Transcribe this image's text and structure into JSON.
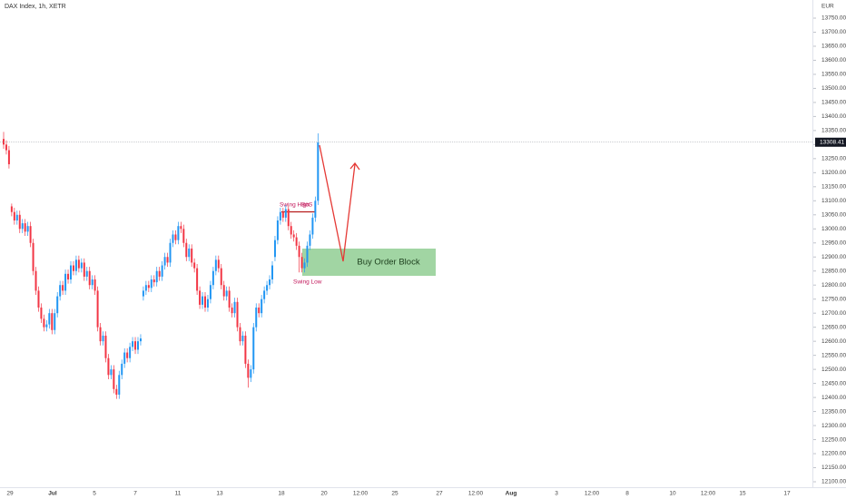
{
  "chart_data": {
    "type": "candlestick",
    "title": "DAX Index, 1h, XETR",
    "currency": "EUR",
    "up_color": "#2196f3",
    "down_color": "#f23645",
    "grid": false,
    "annotations": {
      "swing_high": "Swing High",
      "bos": "BoS",
      "swing_low": "Swing Low",
      "order_block": "Buy Order Block"
    },
    "x_labels": [
      "29",
      "Jul",
      "5",
      "7",
      "11",
      "13",
      "18",
      "20",
      "12:00",
      "25",
      "27",
      "12:00",
      "Aug",
      "3",
      "12:00",
      "8",
      "10",
      "12:00",
      "15",
      "17"
    ],
    "ylim": [
      12080,
      13790
    ],
    "yticks": [
      {
        "value": 12100,
        "label": "12100.00"
      },
      {
        "value": 12150,
        "label": "12150.00"
      },
      {
        "value": 12200,
        "label": "12200.00"
      },
      {
        "value": 12250,
        "label": "12250.00"
      },
      {
        "value": 12300,
        "label": "12300.00"
      },
      {
        "value": 12350,
        "label": "12350.00"
      },
      {
        "value": 12400,
        "label": "12400.00"
      },
      {
        "value": 12450,
        "label": "12450.00"
      },
      {
        "value": 12500,
        "label": "12500.00"
      },
      {
        "value": 12550,
        "label": "12550.00"
      },
      {
        "value": 12600,
        "label": "12600.00"
      },
      {
        "value": 12650,
        "label": "12650.00"
      },
      {
        "value": 12700,
        "label": "12700.00"
      },
      {
        "value": 12750,
        "label": "12750.00"
      },
      {
        "value": 12800,
        "label": "12800.00"
      },
      {
        "value": 12850,
        "label": "12850.00"
      },
      {
        "value": 12900,
        "label": "12900.00"
      },
      {
        "value": 12950,
        "label": "12950.00"
      },
      {
        "value": 13000,
        "label": "13000.00"
      },
      {
        "value": 13050,
        "label": "13050.00"
      },
      {
        "value": 13100,
        "label": "13100.00"
      },
      {
        "value": 13150,
        "label": "13150.00"
      },
      {
        "value": 13200,
        "label": "13200.00"
      },
      {
        "value": 13250,
        "label": "13250.00"
      },
      {
        "value": 13300,
        "label": "13300.00"
      },
      {
        "value": 13350,
        "label": "13350.00"
      },
      {
        "value": 13400,
        "label": "13400.00"
      },
      {
        "value": 13450,
        "label": "13450.00"
      },
      {
        "value": 13500,
        "label": "13500.00"
      },
      {
        "value": 13550,
        "label": "13550.00"
      },
      {
        "value": 13600,
        "label": "13600.00"
      },
      {
        "value": 13650,
        "label": "13650.00"
      },
      {
        "value": 13700,
        "label": "13700.00"
      },
      {
        "value": 13750,
        "label": "13750.00"
      }
    ],
    "candles": [
      [
        13320,
        13345,
        13285,
        13300
      ],
      [
        13300,
        13315,
        13265,
        13280
      ],
      [
        13280,
        13295,
        13215,
        13230
      ],
      [
        13080,
        13090,
        13045,
        13060
      ],
      [
        13060,
        13075,
        13015,
        13030
      ],
      [
        13030,
        13065,
        13015,
        13050
      ],
      [
        13050,
        13065,
        12985,
        13000
      ],
      [
        13000,
        13035,
        12985,
        13020
      ],
      [
        13020,
        13035,
        12975,
        12990
      ],
      [
        12990,
        13025,
        12975,
        13010
      ],
      [
        13010,
        13025,
        12935,
        12950
      ],
      [
        12950,
        12965,
        12835,
        12850
      ],
      [
        12850,
        12865,
        12765,
        12780
      ],
      [
        12780,
        12795,
        12705,
        12720
      ],
      [
        12720,
        12735,
        12665,
        12680
      ],
      [
        12680,
        12695,
        12635,
        12650
      ],
      [
        12650,
        12675,
        12635,
        12660
      ],
      [
        12660,
        12715,
        12645,
        12700
      ],
      [
        12700,
        12715,
        12625,
        12640
      ],
      [
        12640,
        12715,
        12625,
        12700
      ],
      [
        12700,
        12775,
        12685,
        12760
      ],
      [
        12760,
        12815,
        12745,
        12800
      ],
      [
        12800,
        12815,
        12765,
        12780
      ],
      [
        12780,
        12855,
        12765,
        12840
      ],
      [
        12840,
        12855,
        12805,
        12820
      ],
      [
        12820,
        12885,
        12805,
        12870
      ],
      [
        12870,
        12885,
        12835,
        12850
      ],
      [
        12850,
        12905,
        12835,
        12890
      ],
      [
        12890,
        12905,
        12845,
        12860
      ],
      [
        12860,
        12895,
        12845,
        12880
      ],
      [
        12880,
        12895,
        12815,
        12830
      ],
      [
        12830,
        12865,
        12815,
        12850
      ],
      [
        12850,
        12865,
        12785,
        12800
      ],
      [
        12800,
        12835,
        12785,
        12820
      ],
      [
        12820,
        12835,
        12765,
        12780
      ],
      [
        12780,
        12795,
        12635,
        12650
      ],
      [
        12650,
        12665,
        12585,
        12600
      ],
      [
        12600,
        12635,
        12585,
        12620
      ],
      [
        12620,
        12635,
        12525,
        12540
      ],
      [
        12540,
        12555,
        12465,
        12480
      ],
      [
        12480,
        12515,
        12465,
        12500
      ],
      [
        12500,
        12515,
        12415,
        12430
      ],
      [
        12430,
        12445,
        12395,
        12410
      ],
      [
        12410,
        12495,
        12395,
        12480
      ],
      [
        12480,
        12535,
        12465,
        12520
      ],
      [
        12520,
        12575,
        12505,
        12560
      ],
      [
        12560,
        12575,
        12525,
        12540
      ],
      [
        12540,
        12595,
        12525,
        12580
      ],
      [
        12580,
        12615,
        12565,
        12600
      ],
      [
        12600,
        12615,
        12555,
        12570
      ],
      [
        12570,
        12615,
        12555,
        12600
      ],
      [
        12600,
        12625,
        12585,
        12610
      ],
      [
        12760,
        12795,
        12745,
        12780
      ],
      [
        12780,
        12815,
        12765,
        12800
      ],
      [
        12800,
        12815,
        12775,
        12790
      ],
      [
        12790,
        12835,
        12775,
        12820
      ],
      [
        12820,
        12835,
        12795,
        12810
      ],
      [
        12810,
        12865,
        12795,
        12850
      ],
      [
        12850,
        12865,
        12815,
        12830
      ],
      [
        12830,
        12885,
        12815,
        12870
      ],
      [
        12870,
        12915,
        12855,
        12900
      ],
      [
        12900,
        12915,
        12865,
        12880
      ],
      [
        12880,
        12965,
        12865,
        12950
      ],
      [
        12950,
        12995,
        12935,
        12980
      ],
      [
        12980,
        12995,
        12945,
        12960
      ],
      [
        12960,
        13025,
        12945,
        13010
      ],
      [
        13010,
        13025,
        12985,
        13000
      ],
      [
        13000,
        13015,
        12935,
        12950
      ],
      [
        12950,
        12965,
        12885,
        12900
      ],
      [
        12900,
        12945,
        12885,
        12930
      ],
      [
        12930,
        12945,
        12865,
        12880
      ],
      [
        12880,
        12895,
        12845,
        12860
      ],
      [
        12860,
        12875,
        12765,
        12780
      ],
      [
        12780,
        12795,
        12715,
        12730
      ],
      [
        12730,
        12775,
        12715,
        12760
      ],
      [
        12760,
        12775,
        12705,
        12720
      ],
      [
        12720,
        12765,
        12705,
        12750
      ],
      [
        12750,
        12815,
        12735,
        12800
      ],
      [
        12800,
        12865,
        12785,
        12850
      ],
      [
        12850,
        12905,
        12835,
        12890
      ],
      [
        12890,
        12905,
        12845,
        12860
      ],
      [
        12860,
        12875,
        12785,
        12800
      ],
      [
        12800,
        12815,
        12745,
        12760
      ],
      [
        12760,
        12795,
        12745,
        12780
      ],
      [
        12780,
        12795,
        12705,
        12720
      ],
      [
        12720,
        12735,
        12685,
        12700
      ],
      [
        12700,
        12755,
        12685,
        12740
      ],
      [
        12740,
        12755,
        12635,
        12650
      ],
      [
        12650,
        12665,
        12585,
        12600
      ],
      [
        12600,
        12635,
        12585,
        12620
      ],
      [
        12620,
        12635,
        12505,
        12520
      ],
      [
        12520,
        12535,
        12435,
        12470
      ],
      [
        12470,
        12515,
        12455,
        12500
      ],
      [
        12500,
        12665,
        12485,
        12650
      ],
      [
        12650,
        12735,
        12635,
        12720
      ],
      [
        12720,
        12735,
        12685,
        12700
      ],
      [
        12700,
        12765,
        12685,
        12750
      ],
      [
        12750,
        12795,
        12735,
        12780
      ],
      [
        12780,
        12815,
        12765,
        12800
      ],
      [
        12800,
        12835,
        12785,
        12820
      ],
      [
        12820,
        12885,
        12805,
        12870
      ],
      [
        12900,
        12975,
        12885,
        12960
      ],
      [
        12960,
        13045,
        12945,
        13030
      ],
      [
        13030,
        13075,
        13015,
        13060
      ],
      [
        13060,
        13075,
        13025,
        13040
      ],
      [
        13040,
        13085,
        13025,
        13070
      ],
      [
        13070,
        13085,
        12995,
        13010
      ],
      [
        13010,
        13025,
        12965,
        12980
      ],
      [
        12980,
        12995,
        12955,
        12970
      ],
      [
        12970,
        12985,
        12925,
        12940
      ],
      [
        12940,
        12955,
        12845,
        12900
      ],
      [
        12900,
        12915,
        12845,
        12860
      ],
      [
        12860,
        12895,
        12845,
        12880
      ],
      [
        12880,
        12955,
        12865,
        12940
      ],
      [
        12940,
        12995,
        12925,
        12980
      ],
      [
        12980,
        13055,
        12965,
        13040
      ],
      [
        13040,
        13115,
        13025,
        13100
      ],
      [
        13100,
        13340,
        13085,
        13308.41
      ]
    ]
  }
}
